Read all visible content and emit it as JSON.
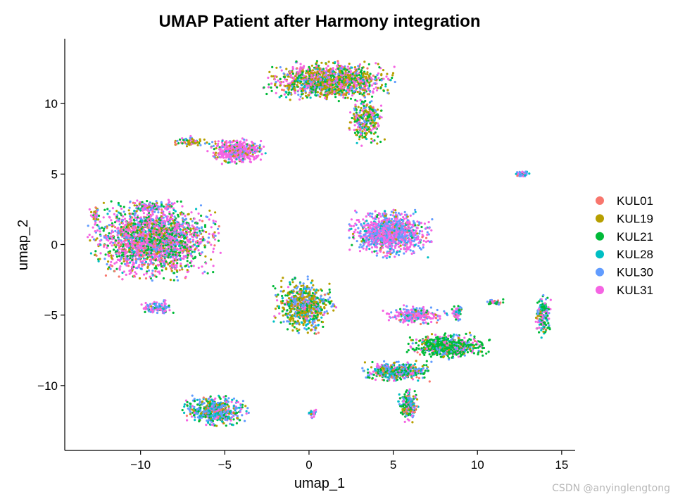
{
  "chart_data": {
    "type": "scatter",
    "title": "UMAP Patient after Harmony integration",
    "xlabel": "umap_1",
    "ylabel": "umap_2",
    "xlim": [
      -14.5,
      15.8
    ],
    "ylim": [
      -14.6,
      14.6
    ],
    "x_ticks": [
      -10,
      -5,
      0,
      5,
      10,
      15
    ],
    "y_ticks": [
      -10,
      -5,
      0,
      5,
      10
    ],
    "x_tick_labels": [
      "−10",
      "−5",
      "0",
      "5",
      "10",
      "15"
    ],
    "y_tick_labels": [
      "−10",
      "−5",
      "0",
      "5",
      "10"
    ],
    "grid": false,
    "legend_position": "right",
    "series": [
      {
        "name": "KUL01",
        "color": "#F8766D"
      },
      {
        "name": "KUL19",
        "color": "#B79F00"
      },
      {
        "name": "KUL21",
        "color": "#00BA38"
      },
      {
        "name": "KUL28",
        "color": "#00BFC4"
      },
      {
        "name": "KUL30",
        "color": "#619CFF"
      },
      {
        "name": "KUL31",
        "color": "#F564E3"
      }
    ],
    "clusters": [
      {
        "center": [
          1.2,
          11.6
        ],
        "spread": [
          2.5,
          0.9
        ],
        "n": 1400,
        "weights": [
          0.04,
          0.32,
          0.22,
          0.06,
          0.08,
          0.28
        ]
      },
      {
        "center": [
          3.4,
          8.8
        ],
        "spread": [
          0.7,
          1.2
        ],
        "n": 280,
        "weights": [
          0.04,
          0.35,
          0.3,
          0.05,
          0.08,
          0.18
        ]
      },
      {
        "center": [
          -4.3,
          6.6
        ],
        "spread": [
          1.1,
          0.6
        ],
        "n": 500,
        "weights": [
          0.04,
          0.1,
          0.05,
          0.04,
          0.12,
          0.65
        ]
      },
      {
        "center": [
          -7.0,
          7.3
        ],
        "spread": [
          0.7,
          0.25
        ],
        "n": 70,
        "weights": [
          0.05,
          0.45,
          0.1,
          0.05,
          0.1,
          0.25
        ]
      },
      {
        "center": [
          -9.2,
          0.3
        ],
        "spread": [
          2.5,
          1.8
        ],
        "n": 2200,
        "weights": [
          0.08,
          0.1,
          0.22,
          0.06,
          0.12,
          0.42
        ]
      },
      {
        "center": [
          -9.0,
          -4.5
        ],
        "spread": [
          0.7,
          0.35
        ],
        "n": 120,
        "weights": [
          0.05,
          0.05,
          0.1,
          0.05,
          0.35,
          0.4
        ]
      },
      {
        "center": [
          -9.5,
          2.7
        ],
        "spread": [
          1.0,
          0.3
        ],
        "n": 100,
        "weights": [
          0.05,
          0.05,
          0.1,
          0.05,
          0.35,
          0.4
        ]
      },
      {
        "center": [
          -12.7,
          2.0
        ],
        "spread": [
          0.15,
          0.5
        ],
        "n": 50,
        "weights": [
          0.05,
          0.35,
          0.25,
          0.05,
          0.1,
          0.2
        ]
      },
      {
        "center": [
          -0.3,
          -4.3
        ],
        "spread": [
          1.2,
          1.3
        ],
        "n": 700,
        "weights": [
          0.05,
          0.35,
          0.2,
          0.1,
          0.2,
          0.1
        ]
      },
      {
        "center": [
          4.8,
          0.8
        ],
        "spread": [
          1.6,
          1.1
        ],
        "n": 1100,
        "weights": [
          0.03,
          0.04,
          0.03,
          0.08,
          0.35,
          0.47
        ]
      },
      {
        "center": [
          -5.6,
          -11.8
        ],
        "spread": [
          1.3,
          0.7
        ],
        "n": 600,
        "weights": [
          0.04,
          0.1,
          0.2,
          0.2,
          0.3,
          0.16
        ]
      },
      {
        "center": [
          12.7,
          5.0
        ],
        "spread": [
          0.3,
          0.15
        ],
        "n": 50,
        "weights": [
          0.04,
          0.05,
          0.05,
          0.1,
          0.4,
          0.36
        ]
      },
      {
        "center": [
          5.2,
          -9.0
        ],
        "spread": [
          1.3,
          0.5
        ],
        "n": 500,
        "weights": [
          0.06,
          0.1,
          0.25,
          0.15,
          0.3,
          0.14
        ]
      },
      {
        "center": [
          5.9,
          -11.4
        ],
        "spread": [
          0.4,
          0.8
        ],
        "n": 220,
        "weights": [
          0.06,
          0.1,
          0.3,
          0.15,
          0.25,
          0.14
        ]
      },
      {
        "center": [
          8.2,
          -7.2
        ],
        "spread": [
          1.6,
          0.6
        ],
        "n": 650,
        "weights": [
          0.03,
          0.06,
          0.62,
          0.05,
          0.12,
          0.12
        ]
      },
      {
        "center": [
          6.3,
          -5.0
        ],
        "spread": [
          1.2,
          0.45
        ],
        "n": 260,
        "weights": [
          0.04,
          0.04,
          0.05,
          0.08,
          0.24,
          0.55
        ]
      },
      {
        "center": [
          8.8,
          -4.8
        ],
        "spread": [
          0.2,
          0.4
        ],
        "n": 70,
        "weights": [
          0.04,
          0.04,
          0.15,
          0.1,
          0.37,
          0.3
        ]
      },
      {
        "center": [
          13.9,
          -5.1
        ],
        "spread": [
          0.3,
          1.0
        ],
        "n": 170,
        "weights": [
          0.04,
          0.1,
          0.35,
          0.1,
          0.25,
          0.16
        ]
      },
      {
        "center": [
          11.0,
          -4.1
        ],
        "spread": [
          0.4,
          0.15
        ],
        "n": 40,
        "weights": [
          0.04,
          0.1,
          0.35,
          0.1,
          0.25,
          0.16
        ]
      },
      {
        "center": [
          0.2,
          -12.0
        ],
        "spread": [
          0.2,
          0.25
        ],
        "n": 30,
        "weights": [
          0.05,
          0.05,
          0.05,
          0.2,
          0.4,
          0.25
        ]
      }
    ]
  },
  "watermark": "CSDN @anyinglengtong"
}
